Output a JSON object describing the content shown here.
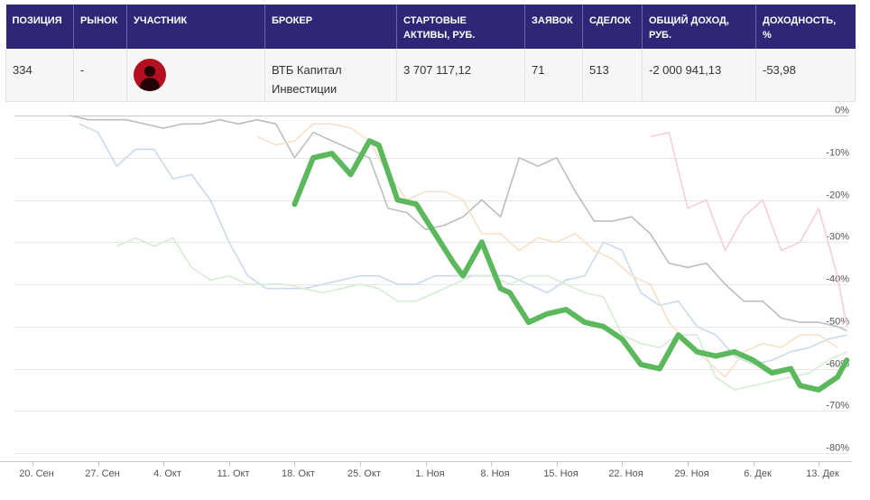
{
  "table": {
    "headers": {
      "position": "ПОЗИЦИЯ",
      "market": "РЫНОК",
      "participant": "УЧАСТНИК",
      "broker": "БРОКЕР",
      "start_assets_line1": "СТАРТОВЫЕ",
      "start_assets_line2": "АКТИВЫ, РУБ.",
      "orders": "ЗАЯВОК",
      "deals": "СДЕЛОК",
      "income_line1": "ОБЩИЙ ДОХОД,",
      "income_line2": "РУБ.",
      "yield_line1": "ДОХОДНОСТЬ,",
      "yield_line2": "%"
    },
    "row": {
      "position": "334",
      "market": "-",
      "avatar_icon": "user-avatar-icon",
      "broker_line1": "ВТБ Капитал",
      "broker_line2": "Инвестиции",
      "start_assets": "3 707 117,12",
      "orders": "71",
      "deals": "513",
      "income": "-2 000 941,13",
      "yield": "-53,98"
    },
    "colors": {
      "header_bg": "#2e2777",
      "avatar_bg": "#b4101f"
    }
  },
  "chart_data": {
    "type": "line",
    "ylim": [
      -80,
      0
    ],
    "y_ticks": [
      0,
      -10,
      -20,
      -30,
      -40,
      -50,
      -60,
      -70,
      -80
    ],
    "y_tick_labels": [
      "0%",
      "-10%",
      "-20%",
      "-30%",
      "-40%",
      "-50%",
      "-60%",
      "-70%",
      "-80%"
    ],
    "x_ticks": [
      "20. Сен",
      "27. Сен",
      "4. Окт",
      "11. Окт",
      "18. Окт",
      "25. Окт",
      "1. Ноя",
      "8. Ноя",
      "15. Ноя",
      "22. Ноя",
      "29. Ноя",
      "6. Дек",
      "13. Дек"
    ],
    "x_unit": "days from 20. Сен",
    "xlim": [
      0,
      87
    ],
    "grid": true,
    "series": [
      {
        "color": "#5cb85c",
        "highlight": true,
        "x": [
          28,
          30,
          32,
          34,
          36,
          37,
          39,
          41,
          43,
          45,
          46,
          48,
          50,
          51,
          53,
          55,
          57,
          59,
          61,
          63,
          65,
          67,
          69,
          71,
          73,
          75,
          77,
          79,
          81,
          82,
          84,
          86,
          87
        ],
        "values": [
          -21,
          -10,
          -9,
          -14,
          -6,
          -7,
          -20,
          -21,
          -28,
          -35,
          -38,
          -30,
          -41,
          -42,
          -49,
          -47,
          -46,
          -49,
          -50,
          -53,
          -59,
          -60,
          -52,
          -56,
          -57,
          -56,
          -58,
          -61,
          -60,
          -64,
          -65,
          -62,
          -58
        ]
      },
      {
        "color": "#bdbdbd",
        "x": [
          4,
          6,
          8,
          10,
          12,
          14,
          16,
          18,
          20,
          22,
          24,
          26,
          28,
          30,
          32,
          34,
          36,
          38,
          40,
          42,
          44,
          46,
          48,
          50,
          52,
          54,
          56,
          58,
          60,
          62,
          64,
          66,
          68,
          70,
          72,
          74,
          76,
          78,
          80,
          82,
          84,
          86,
          87
        ],
        "values": [
          0,
          -1,
          -1,
          -1,
          -2,
          -3,
          -2,
          -2,
          -1,
          -2,
          -1,
          -2,
          -10,
          -4,
          -6,
          -8,
          -10,
          -22,
          -23,
          -27,
          -26,
          -24,
          -20,
          -24,
          -10,
          -12,
          -10,
          -18,
          -25,
          -25,
          -24,
          -28,
          -35,
          -36,
          -35,
          -40,
          -44,
          -44,
          -48,
          -49,
          -49,
          -50,
          -51
        ]
      },
      {
        "color": "#c9d9ee",
        "x": [
          5,
          7,
          9,
          11,
          13,
          15,
          17,
          19,
          21,
          23,
          25,
          27,
          29,
          31,
          33,
          35,
          37,
          39,
          41,
          43,
          45,
          47,
          49,
          51,
          53,
          55,
          57,
          59,
          61,
          63,
          65,
          67,
          69,
          71,
          73,
          75,
          77,
          79,
          81,
          83,
          85,
          87
        ],
        "values": [
          -2,
          -4,
          -12,
          -8,
          -8,
          -15,
          -14,
          -20,
          -30,
          -38,
          -41,
          -41,
          -41,
          -40,
          -39,
          -38,
          -38,
          -40,
          -40,
          -38,
          -38,
          -38,
          -38,
          -38,
          -40,
          -42,
          -39,
          -38,
          -30,
          -32,
          -42,
          -45,
          -44,
          -50,
          -52,
          -57,
          -59,
          -58,
          -56,
          -55,
          -53,
          -52
        ]
      },
      {
        "color": "#f7e0c9",
        "x": [
          24,
          26,
          28,
          30,
          32,
          34,
          36,
          38,
          40,
          42,
          44,
          46,
          48,
          50,
          52,
          54,
          56,
          58,
          60,
          62,
          64,
          66,
          68,
          70,
          72,
          74,
          76,
          78,
          80,
          82,
          84,
          86
        ],
        "values": [
          -5,
          -7,
          -6,
          -2,
          -2,
          -3,
          -6,
          -14,
          -20,
          -18,
          -18,
          -20,
          -28,
          -28,
          -32,
          -29,
          -30,
          -28,
          -32,
          -34,
          -38,
          -40,
          -49,
          -54,
          -58,
          -62,
          -56,
          -54,
          -55,
          -52,
          -52,
          -55
        ]
      },
      {
        "color": "#d7ecd4",
        "x": [
          9,
          11,
          13,
          15,
          17,
          19,
          21,
          23,
          25,
          27,
          29,
          31,
          33,
          35,
          37,
          39,
          41,
          43,
          45,
          47,
          49,
          51,
          53,
          55,
          57,
          59,
          61,
          63,
          65,
          67,
          69,
          71,
          73,
          75,
          77,
          79,
          81,
          83,
          85,
          87
        ],
        "values": [
          -31,
          -29,
          -31,
          -29,
          -36,
          -39,
          -38,
          -40,
          -40,
          -40,
          -41,
          -42,
          -41,
          -40,
          -41,
          -44,
          -44,
          -42,
          -40,
          -38,
          -38,
          -40,
          -38,
          -38,
          -40,
          -42,
          -43,
          -52,
          -54,
          -55,
          -52,
          -52,
          -62,
          -65,
          -64,
          -63,
          -62,
          -61,
          -58,
          -56
        ]
      },
      {
        "color": "#f6cfd4",
        "x": [
          66,
          68,
          70,
          72,
          74,
          76,
          78,
          80,
          82,
          84,
          86,
          87
        ],
        "values": [
          -5,
          -4,
          -22,
          -20,
          -32,
          -24,
          -20,
          -32,
          -30,
          -22,
          -38,
          -50
        ]
      }
    ]
  }
}
